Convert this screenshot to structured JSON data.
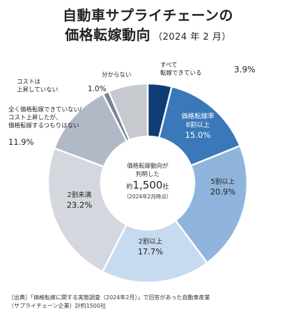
{
  "title_line1": "自動車サプライチェーンの",
  "title_line2": "価格転嫁動向",
  "title_date": "（2024 年 2 月）",
  "center": {
    "line1": "価格転嫁動向が",
    "line2": "判明した",
    "prefix": "約",
    "count": "1,500",
    "suffix": "社",
    "note": "（2024年2月時点）"
  },
  "source_line1": "［出典］「価格転嫁に関する実態調査（2024年2月）」で回答があった自動車産業",
  "source_line2": "（サプライチェーン企業）計約1500社",
  "chart_data": {
    "type": "pie",
    "style": "donut",
    "slices": [
      {
        "label": [
          "すべて",
          "転嫁できている"
        ],
        "value": 3.9,
        "value_text": "3.9%",
        "color": "#0f3c73"
      },
      {
        "label": [
          "価格転嫁率",
          "8割以上"
        ],
        "value": 15.0,
        "value_text": "15.0%",
        "color": "#3a78b9"
      },
      {
        "label": [
          "5割以上"
        ],
        "value": 20.9,
        "value_text": "20.9%",
        "color": "#8fb5dc"
      },
      {
        "label": [
          "2割以上"
        ],
        "value": 17.7,
        "value_text": "17.7%",
        "color": "#c6dbf0"
      },
      {
        "label": [
          "2割未満"
        ],
        "value": 23.2,
        "value_text": "23.2%",
        "color": "#d4d7dd"
      },
      {
        "label": [
          "全く価格転嫁できていない/",
          "コスト上昇したが、",
          "価格転嫁するつもりはない"
        ],
        "value": 11.9,
        "value_text": "11.9%",
        "color": "#b1b9c6"
      },
      {
        "label": [
          "コストは",
          "上昇していない"
        ],
        "value": 1.0,
        "value_text": "1.0%",
        "color": "#77839a"
      },
      {
        "label": [
          "分からない"
        ],
        "value": 6.4,
        "value_text": "",
        "color": "#c6c9ce"
      }
    ]
  }
}
